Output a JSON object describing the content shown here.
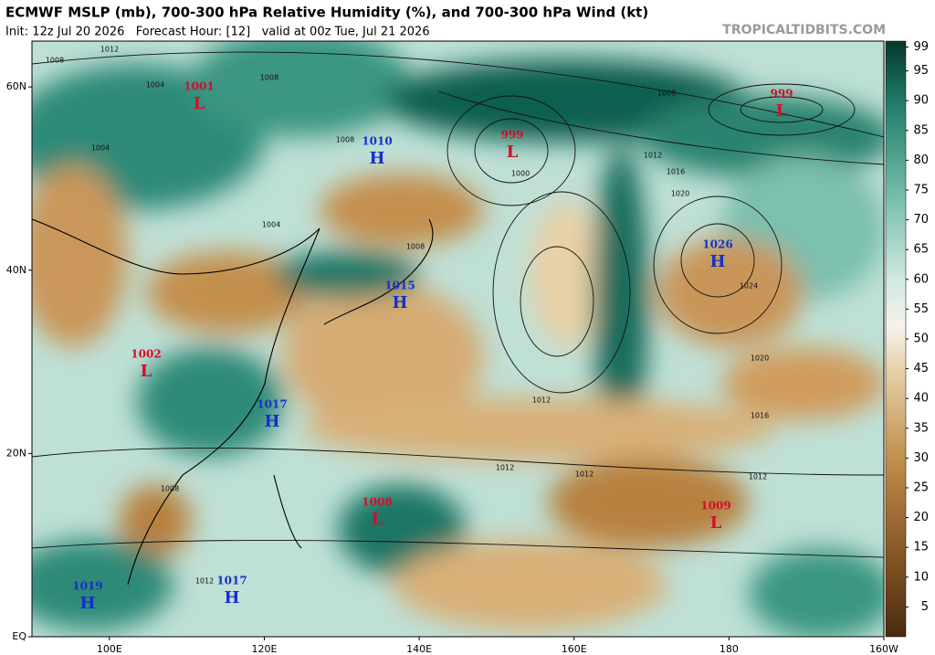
{
  "header": {
    "title": "ECMWF MSLP (mb), 700-300 hPa Relative Humidity (%), and 700-300 hPa Wind (kt)",
    "subtitle": "Init: 12z Jul 20 2026   Forecast Hour: [12]   valid at 00z Tue, Jul 21 2026",
    "credit": "TROPICALTIDBITS.COM"
  },
  "map": {
    "lon_range": [
      90,
      200
    ],
    "lat_range": [
      0,
      65
    ],
    "lon_ticks": [
      {
        "value": 100,
        "label": "100E"
      },
      {
        "value": 120,
        "label": "120E"
      },
      {
        "value": 140,
        "label": "140E"
      },
      {
        "value": 160,
        "label": "160E"
      },
      {
        "value": 180,
        "label": "180"
      },
      {
        "value": 200,
        "label": "160W"
      }
    ],
    "lat_ticks": [
      {
        "value": 0,
        "label": "EQ"
      },
      {
        "value": 20,
        "label": "20N"
      },
      {
        "value": 40,
        "label": "40N"
      },
      {
        "value": 60,
        "label": "60N"
      }
    ],
    "centers": [
      {
        "type": "L",
        "pressure": "1001"
      },
      {
        "type": "H",
        "pressure": "1010"
      },
      {
        "type": "L",
        "pressure": "999"
      },
      {
        "type": "L",
        "pressure": "999"
      },
      {
        "type": "H",
        "pressure": "1026"
      },
      {
        "type": "H",
        "pressure": "1015"
      },
      {
        "type": "L",
        "pressure": "1002"
      },
      {
        "type": "H",
        "pressure": "1017"
      },
      {
        "type": "L",
        "pressure": "1008"
      },
      {
        "type": "L",
        "pressure": "1009"
      },
      {
        "type": "H",
        "pressure": "1019"
      },
      {
        "type": "H",
        "pressure": "1017"
      }
    ],
    "isobar_labels": [
      "1012",
      "1008",
      "1004",
      "1008",
      "1004",
      "1000",
      "1008",
      "1012",
      "1016",
      "1020",
      "1024",
      "1020",
      "1016",
      "1012",
      "1012",
      "1012",
      "1012",
      "1008",
      "1012",
      "1004",
      "1008",
      "1008"
    ]
  },
  "colorbar": {
    "range": [
      0,
      100
    ],
    "ticks": [
      99,
      95,
      90,
      85,
      80,
      75,
      70,
      65,
      60,
      55,
      50,
      45,
      40,
      35,
      30,
      25,
      20,
      15,
      10,
      5
    ]
  }
}
